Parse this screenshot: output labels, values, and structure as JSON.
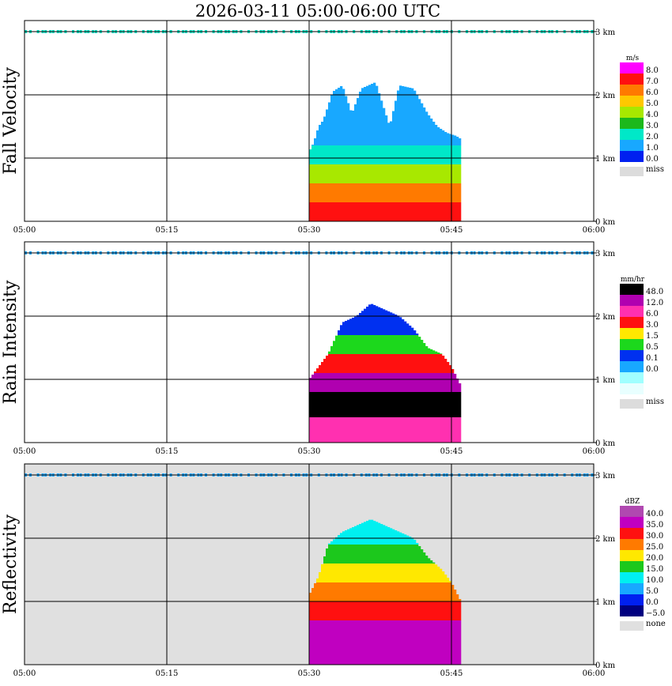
{
  "chart_data": {
    "type": "heatmap",
    "title": "2026-03-11   05:00-06:00 UTC",
    "x_ticks": [
      "05:00",
      "05:15",
      "05:30",
      "05:45",
      "06:00"
    ],
    "y_ticks": [
      "0 km",
      "1 km",
      "2 km",
      "3 km"
    ],
    "ylim_km": [
      0,
      3.15
    ],
    "xlim": [
      "05:00",
      "06:00"
    ],
    "panels": [
      {
        "name": "fall-velocity",
        "ylabel": "Fall Velocity",
        "unit": "m/s",
        "background": "#ffffff",
        "levels": [
          "8.0",
          "7.0",
          "6.0",
          "5.0",
          "4.0",
          "3.0",
          "2.0",
          "1.0",
          "0.0"
        ],
        "missing_label": "miss",
        "colors": [
          "#ff00ff",
          "#ff1010",
          "#ff7a00",
          "#ffc800",
          "#a8e800",
          "#1cb81c",
          "#00e8c8",
          "#18a8ff",
          "#0020f0"
        ],
        "missing_color": "#dcdcdc",
        "echo": {
          "x_start_min": 30.0,
          "x_end_min": 46.0,
          "profile": [
            [
              30.0,
              0,
              1.1
            ],
            [
              30.5,
              0,
              1.25
            ],
            [
              31.0,
              0,
              1.5
            ],
            [
              31.5,
              0,
              1.6
            ],
            [
              32.5,
              0,
              2.05
            ],
            [
              33.5,
              0,
              2.15
            ],
            [
              34.5,
              0,
              1.7
            ],
            [
              35.5,
              0,
              2.1
            ],
            [
              37,
              0,
              2.2
            ],
            [
              38.5,
              0,
              1.5
            ],
            [
              39.5,
              0,
              2.15
            ],
            [
              41,
              0,
              2.1
            ],
            [
              42.5,
              0,
              1.7
            ],
            [
              43.5,
              0,
              1.5
            ],
            [
              44.5,
              0,
              1.4
            ],
            [
              45.5,
              0,
              1.35
            ],
            [
              46,
              0,
              1.3
            ]
          ],
          "bands": [
            [
              0,
              0.3,
              "7.0"
            ],
            [
              0.3,
              0.6,
              "6.0"
            ],
            [
              0.6,
              0.9,
              "4.0"
            ],
            [
              0.9,
              1.2,
              "2.0"
            ],
            [
              1.2,
              2.4,
              "1.0"
            ]
          ]
        }
      },
      {
        "name": "rain-intensity",
        "ylabel": "Rain Intensity",
        "unit": "mm/hr",
        "background": "#ffffff",
        "levels": [
          "48.0",
          "12.0",
          "6.0",
          "3.0",
          "1.5",
          "0.5",
          "0.1",
          "0.0"
        ],
        "missing_label": "miss",
        "colors": [
          "#000000",
          "#b000b0",
          "#ff30b0",
          "#ff1010",
          "#ffe800",
          "#1cd81c",
          "#0030f0",
          "#18a8ff",
          "#a0ffff",
          "#e8ffff"
        ],
        "missing_color": "#dcdcdc",
        "echo": {
          "x_start_min": 30.0,
          "x_end_min": 46.0,
          "profile": [
            [
              30.0,
              0,
              1.0
            ],
            [
              31,
              0,
              1.2
            ],
            [
              32,
              0,
              1.4
            ],
            [
              33.5,
              0,
              1.9
            ],
            [
              35,
              0,
              2.0
            ],
            [
              36.5,
              0,
              2.2
            ],
            [
              38,
              0,
              2.1
            ],
            [
              39.5,
              0,
              2.0
            ],
            [
              41,
              0,
              1.8
            ],
            [
              42.5,
              0,
              1.5
            ],
            [
              44,
              0,
              1.4
            ],
            [
              45,
              0,
              1.2
            ],
            [
              46,
              0,
              0.9
            ]
          ],
          "bands": [
            [
              0,
              0.4,
              "6.0"
            ],
            [
              0.4,
              0.8,
              "48.0"
            ],
            [
              0.8,
              1.1,
              "12.0"
            ],
            [
              1.1,
              1.4,
              "3.0"
            ],
            [
              1.4,
              1.7,
              "0.5"
            ],
            [
              1.7,
              2.2,
              "0.1"
            ]
          ]
        }
      },
      {
        "name": "reflectivity",
        "ylabel": "Reflectivity",
        "unit": "dBZ",
        "background": "#e0e0e0",
        "levels": [
          "40.0",
          "35.0",
          "30.0",
          "25.0",
          "20.0",
          "15.0",
          "10.0",
          "5.0",
          "0.0",
          "−5.0"
        ],
        "missing_label": "none",
        "colors": [
          "#b048b0",
          "#c000c0",
          "#ff1010",
          "#ff7a00",
          "#ffe800",
          "#1cc81c",
          "#00f0f0",
          "#18a8ff",
          "#0020f0",
          "#000080"
        ],
        "missing_color": "#e0e0e0",
        "echo": {
          "x_start_min": 30.0,
          "x_end_min": 46.0,
          "profile": [
            [
              30.0,
              0,
              1.1
            ],
            [
              31,
              0,
              1.4
            ],
            [
              32,
              0,
              1.9
            ],
            [
              33.5,
              0,
              2.1
            ],
            [
              35,
              0,
              2.2
            ],
            [
              36.5,
              0,
              2.3
            ],
            [
              38,
              0,
              2.2
            ],
            [
              39.5,
              0,
              2.1
            ],
            [
              41,
              0,
              2.0
            ],
            [
              42.5,
              0,
              1.7
            ],
            [
              44,
              0,
              1.5
            ],
            [
              45,
              0,
              1.3
            ],
            [
              46,
              0,
              1.0
            ]
          ],
          "bands": [
            [
              0,
              0.7,
              "35.0"
            ],
            [
              0.7,
              1.0,
              "30.0"
            ],
            [
              1.0,
              1.3,
              "25.0"
            ],
            [
              1.3,
              1.6,
              "20.0"
            ],
            [
              1.6,
              1.9,
              "15.0"
            ],
            [
              1.9,
              2.3,
              "10.0"
            ]
          ]
        }
      }
    ]
  }
}
